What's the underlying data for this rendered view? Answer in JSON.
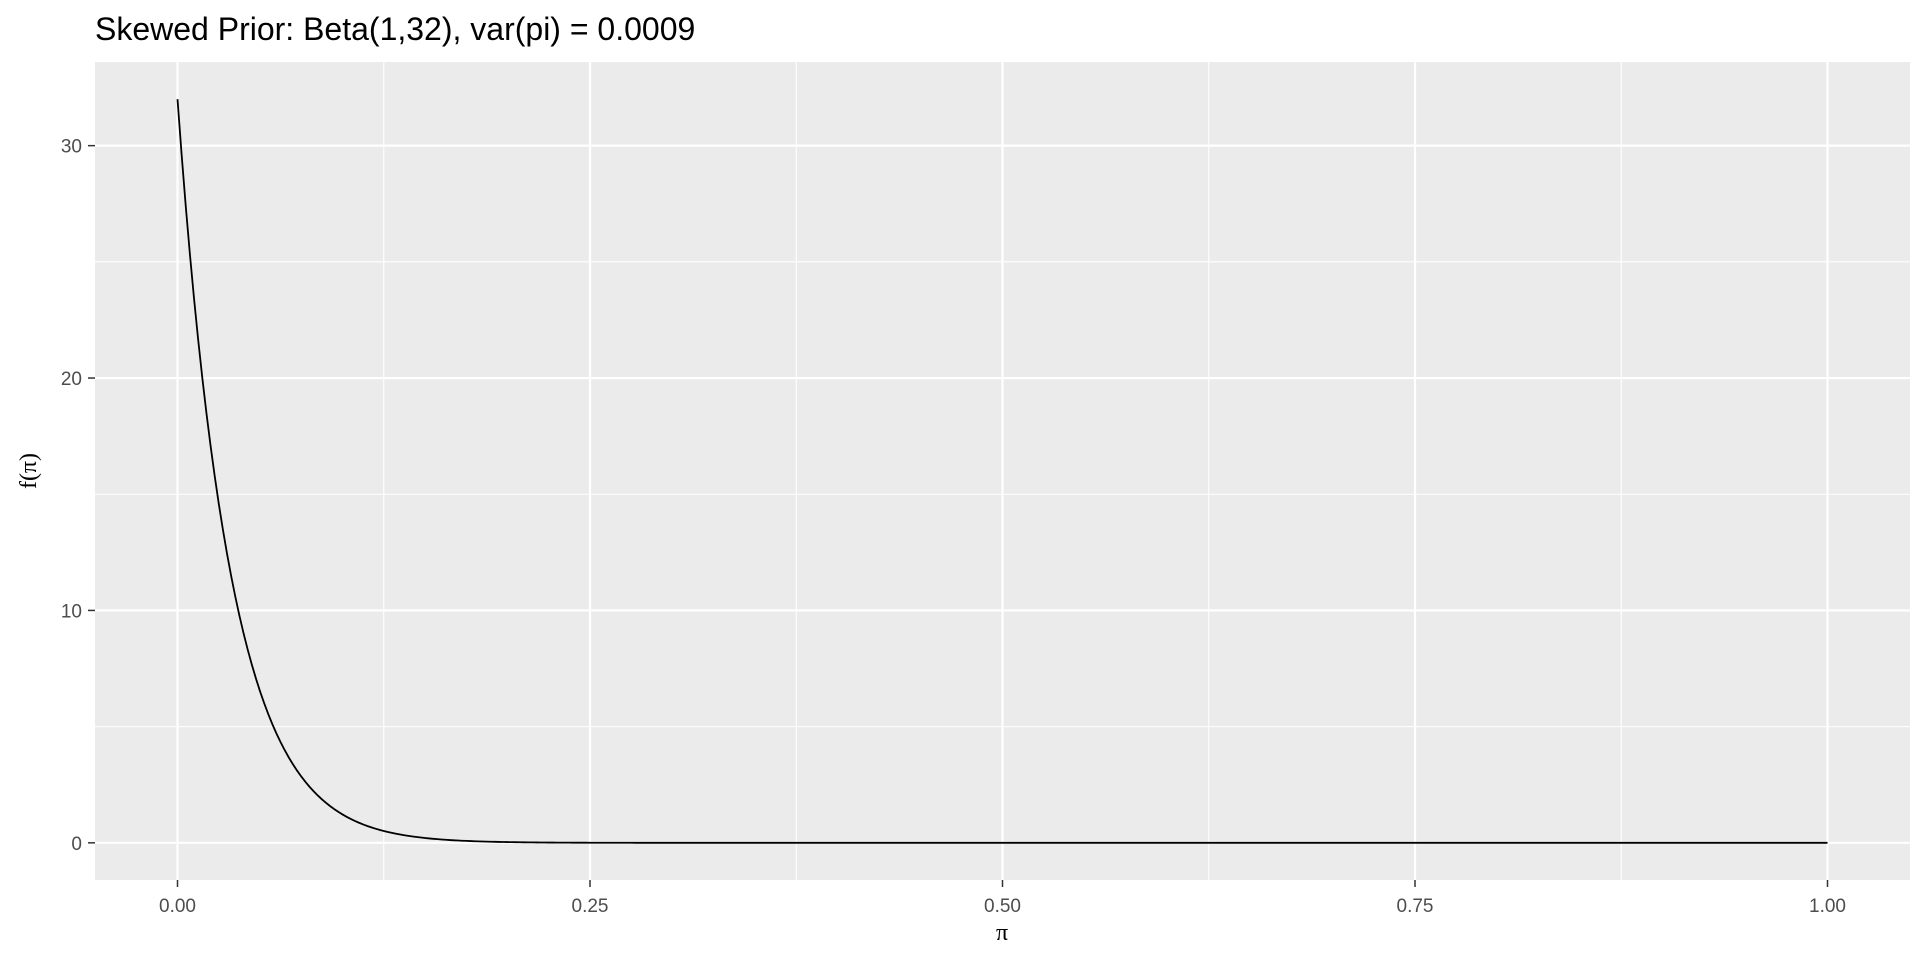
{
  "chart_data": {
    "type": "line",
    "title": "Skewed Prior: Beta(1,32), var(pi) = 0.0009",
    "xlabel": "π",
    "ylabel": "f(π)",
    "xlim": [
      -0.05,
      1.05
    ],
    "ylim": [
      -1.6,
      33.6
    ],
    "x_ticks": [
      0,
      0.25,
      0.5,
      0.75,
      1
    ],
    "x_tick_labels": [
      "0.00",
      "0.25",
      "0.50",
      "0.75",
      "1.00"
    ],
    "y_ticks": [
      0,
      10,
      20,
      30
    ],
    "y_tick_labels": [
      "0",
      "10",
      "20",
      "30"
    ],
    "grid": true,
    "distribution": {
      "family": "Beta",
      "alpha": 1,
      "beta": 32
    },
    "series": [
      {
        "x": [
          0,
          0.01,
          0.02,
          0.03,
          0.04,
          0.05,
          0.06,
          0.07,
          0.08,
          0.09,
          0.1,
          0.12,
          0.14,
          0.16,
          0.18,
          0.2,
          0.25,
          0.3,
          0.4,
          0.5,
          0.6,
          0.7,
          0.8,
          0.9,
          1.0
        ],
        "y": [
          32,
          23.4,
          17.1,
          12.4,
          9.0,
          6.5,
          4.7,
          3.4,
          2.4,
          1.7,
          1.22,
          0.61,
          0.3,
          0.15,
          0.07,
          0.03,
          0.004,
          0.0004,
          0,
          0,
          0,
          0,
          0,
          0,
          0
        ]
      }
    ],
    "colors": {
      "panel_background": "#ebebeb",
      "grid": "#ffffff",
      "line": "#000000"
    }
  }
}
